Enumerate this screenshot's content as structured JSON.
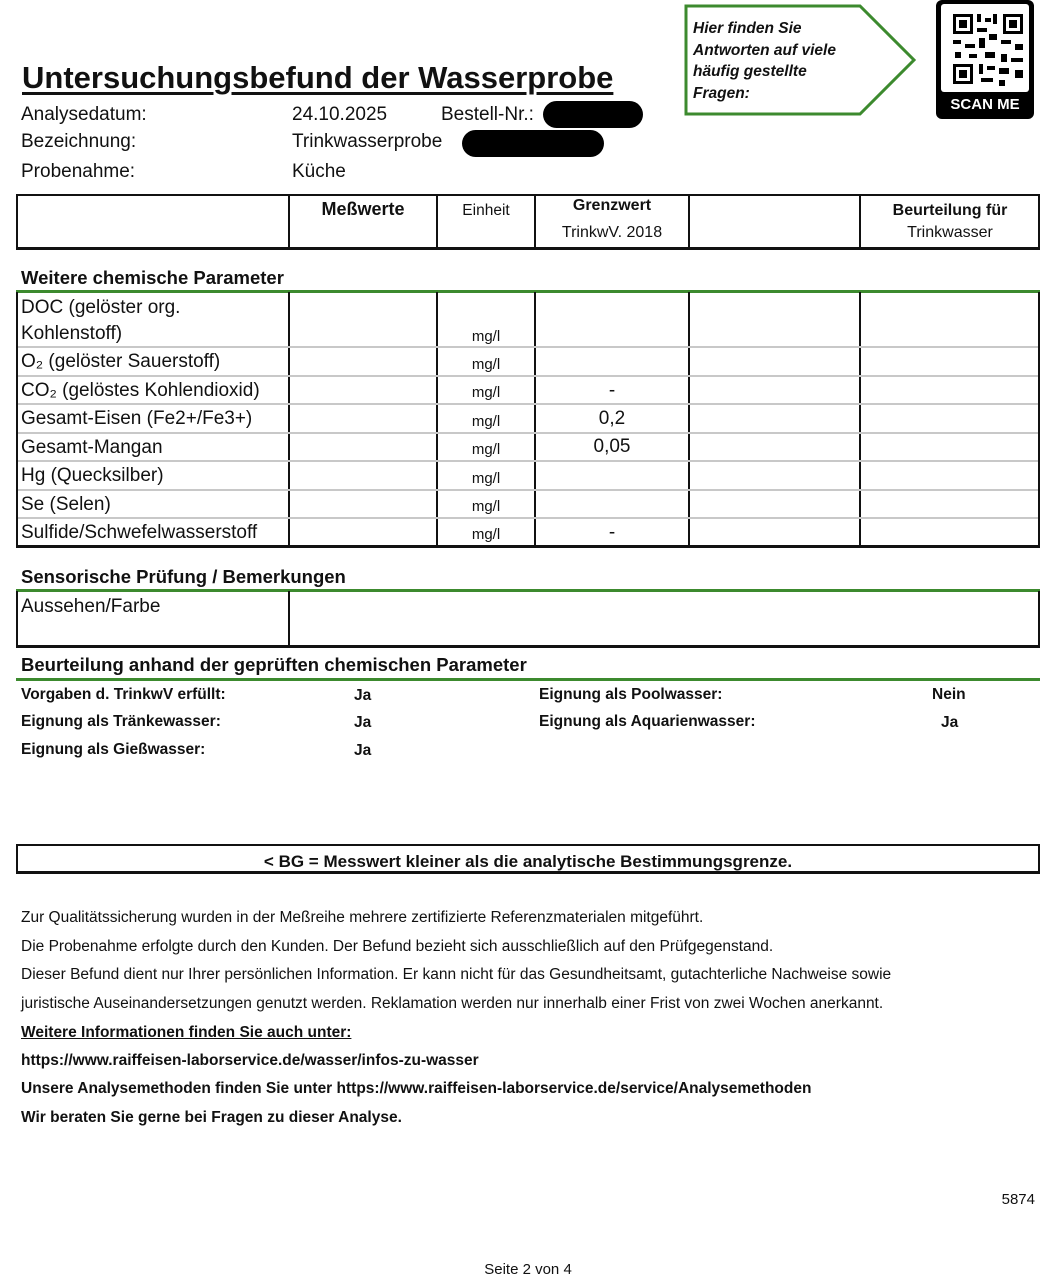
{
  "header": {
    "title": "Untersuchungsbefund der Wasserprobe",
    "callout": [
      "Hier finden Sie",
      "Antworten auf viele",
      "häufig gestellte",
      "Fragen:"
    ],
    "qr_label": "SCAN ME",
    "fields": [
      {
        "label": "Analysedatum:",
        "value": "24.10.2025"
      },
      {
        "label": "Bezeichnung:",
        "value": "Trinkwasserprobe"
      },
      {
        "label": "Probenahme:",
        "value": "Küche"
      }
    ],
    "order_label": "Bestell-Nr.:"
  },
  "table_header": {
    "measured": "Meßwerte",
    "unit": "Einheit",
    "limit": "Grenzwert",
    "limit_sub": "TrinkwV. 2018",
    "assessment": "Beurteilung für",
    "assessment_sub": "Trinkwasser"
  },
  "chem": {
    "title": "Weitere chemische Parameter",
    "rows": [
      {
        "param": "DOC (gelöster org.",
        "param2": "Kohlenstoff)",
        "unit": "mg/l",
        "limit": ""
      },
      {
        "param": "O₂ (gelöster Sauerstoff)",
        "unit": "mg/l",
        "limit": ""
      },
      {
        "param": "CO₂ (gelöstes Kohlendioxid)",
        "unit": "mg/l",
        "limit": "-"
      },
      {
        "param": "Gesamt-Eisen (Fe2+/Fe3+)",
        "unit": "mg/l",
        "limit": "0,2"
      },
      {
        "param": "Gesamt-Mangan",
        "unit": "mg/l",
        "limit": "0,05"
      },
      {
        "param": "Hg (Quecksilber)",
        "unit": "mg/l",
        "limit": ""
      },
      {
        "param": "Se (Selen)",
        "unit": "mg/l",
        "limit": ""
      },
      {
        "param": "Sulfide/Schwefelwasserstoff",
        "unit": "mg/l",
        "limit": "-"
      }
    ]
  },
  "sensory": {
    "title": "Sensorische Prüfung / Bemerkungen",
    "label": "Aussehen/Farbe"
  },
  "assessment": {
    "title": "Beurteilung anhand der geprüften chemischen Parameter",
    "left": [
      {
        "label": "Vorgaben d. TrinkwV erfüllt:",
        "value": "Ja"
      },
      {
        "label": "Eignung als Tränkewasser:",
        "value": "Ja"
      },
      {
        "label": "Eignung als Gießwasser:",
        "value": "Ja"
      }
    ],
    "right": [
      {
        "label": "Eignung als Poolwasser:",
        "value": "Nein"
      },
      {
        "label": "Eignung als Aquarienwasser:",
        "value": "Ja"
      }
    ]
  },
  "bg_note": "< BG = Messwert kleiner als die analytische Bestimmungsgrenze.",
  "footer": {
    "lines": [
      "Zur Qualitätssicherung wurden in der Meßreihe mehrere zertifizierte Referenzmaterialen mitgeführt.",
      "Die Probenahme erfolgte durch den Kunden.  Der Befund bezieht sich ausschließlich auf den Prüfgegenstand.",
      "Dieser Befund dient nur Ihrer persönlichen Information. Er kann nicht für das Gesundheitsamt, gutachterliche Nachweise sowie",
      "juristische Auseinandersetzungen genutzt werden. Reklamation werden nur innerhalb einer Frist von zwei Wochen anerkannt."
    ],
    "info_heading": "Weitere Informationen finden Sie auch unter:",
    "info_url": "https://www.raiffeisen-laborservice.de/wasser/infos-zu-wasser",
    "methods": "Unsere Analysemethoden finden Sie unter https://www.raiffeisen-laborservice.de/service/Analysemethoden",
    "advice": "Wir beraten Sie gerne bei Fragen zu dieser Analyse.",
    "code": "5874",
    "page": "Seite 2 von 4"
  },
  "colors": {
    "accent": "#3c8a2e"
  }
}
